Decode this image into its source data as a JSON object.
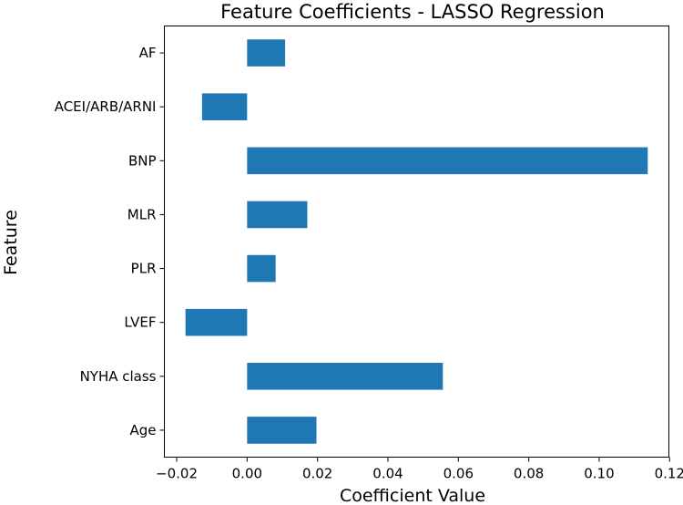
{
  "chart_data": {
    "type": "bar",
    "orientation": "horizontal",
    "title": "Feature Coefficients - LASSO Regression",
    "xlabel": "Coefficient Value",
    "ylabel": "Feature",
    "categories": [
      "AF",
      "ACEI/ARB/ARNI",
      "BNP",
      "MLR",
      "PLR",
      "LVEF",
      "NYHA class",
      "Age"
    ],
    "values": [
      0.0108,
      -0.0128,
      0.1138,
      0.0171,
      0.0081,
      -0.0175,
      0.0556,
      0.0197
    ],
    "xlim": [
      -0.0235,
      0.1198
    ],
    "xticks": [
      -0.02,
      0.0,
      0.02,
      0.04,
      0.06,
      0.08,
      0.1,
      0.12
    ],
    "xtick_labels": [
      "−0.02",
      "0.00",
      "0.02",
      "0.04",
      "0.06",
      "0.08",
      "0.10",
      "0.12"
    ],
    "grid": false,
    "bar_color": "#1f77b4"
  }
}
